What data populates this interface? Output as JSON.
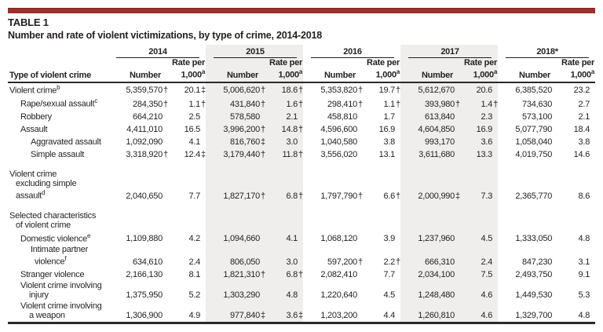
{
  "header": {
    "tag": "TABLE 1",
    "title": "Number and rate of violent victimizations, by type of crime, 2014-2018"
  },
  "columns": {
    "row_header": "Type of violent crime",
    "number_label": "Number",
    "rate_label_line1": "Rate per",
    "rate_label_line2": "1,000",
    "rate_sup": "a",
    "years": [
      {
        "label": "2014",
        "shaded": false
      },
      {
        "label": "2015",
        "shaded": true
      },
      {
        "label": "2016",
        "shaded": false
      },
      {
        "label": "2017",
        "shaded": true
      },
      {
        "label": "2018*",
        "shaded": false
      }
    ]
  },
  "rows": [
    {
      "name": "violent-crime",
      "bold": true,
      "indent": 0,
      "spacer_before": false,
      "section": false,
      "lines": [
        {
          "text": "Violent crime",
          "sup": "b"
        }
      ],
      "cells": [
        [
          "5,359,570",
          "†"
        ],
        [
          "20.1",
          "‡"
        ],
        [
          "5,006,620",
          "†"
        ],
        [
          "18.6",
          "†"
        ],
        [
          "5,353,820",
          "†"
        ],
        [
          "19.7",
          "†"
        ],
        [
          "5,612,670",
          ""
        ],
        [
          "20.6",
          ""
        ],
        [
          "6,385,520",
          ""
        ],
        [
          "23.2",
          ""
        ]
      ]
    },
    {
      "name": "rape-sexual-assault",
      "bold": false,
      "indent": 1,
      "spacer_before": false,
      "section": false,
      "lines": [
        {
          "text": "Rape/sexual assault",
          "sup": "c"
        }
      ],
      "cells": [
        [
          "284,350",
          "†"
        ],
        [
          "1.1",
          "†"
        ],
        [
          "431,840",
          "†"
        ],
        [
          "1.6",
          "†"
        ],
        [
          "298,410",
          "†"
        ],
        [
          "1.1",
          "†"
        ],
        [
          "393,980",
          "†"
        ],
        [
          "1.4",
          "†"
        ],
        [
          "734,630",
          ""
        ],
        [
          "2.7",
          ""
        ]
      ]
    },
    {
      "name": "robbery",
      "bold": false,
      "indent": 1,
      "spacer_before": false,
      "section": false,
      "lines": [
        {
          "text": "Robbery",
          "sup": ""
        }
      ],
      "cells": [
        [
          "664,210",
          ""
        ],
        [
          "2.5",
          ""
        ],
        [
          "578,580",
          ""
        ],
        [
          "2.1",
          ""
        ],
        [
          "458,810",
          ""
        ],
        [
          "1.7",
          ""
        ],
        [
          "613,840",
          ""
        ],
        [
          "2.3",
          ""
        ],
        [
          "573,100",
          ""
        ],
        [
          "2.1",
          ""
        ]
      ]
    },
    {
      "name": "assault",
      "bold": false,
      "indent": 1,
      "spacer_before": false,
      "section": false,
      "lines": [
        {
          "text": "Assault",
          "sup": ""
        }
      ],
      "cells": [
        [
          "4,411,010",
          ""
        ],
        [
          "16.5",
          ""
        ],
        [
          "3,996,200",
          "†"
        ],
        [
          "14.8",
          "†"
        ],
        [
          "4,596,600",
          ""
        ],
        [
          "16.9",
          ""
        ],
        [
          "4,604,850",
          ""
        ],
        [
          "16.9",
          ""
        ],
        [
          "5,077,790",
          ""
        ],
        [
          "18.4",
          ""
        ]
      ]
    },
    {
      "name": "aggravated-assault",
      "bold": false,
      "indent": 2,
      "spacer_before": false,
      "section": false,
      "lines": [
        {
          "text": "Aggravated assault",
          "sup": ""
        }
      ],
      "cells": [
        [
          "1,092,090",
          ""
        ],
        [
          "4.1",
          ""
        ],
        [
          "816,760",
          "‡"
        ],
        [
          "3.0",
          ""
        ],
        [
          "1,040,580",
          ""
        ],
        [
          "3.8",
          ""
        ],
        [
          "993,170",
          ""
        ],
        [
          "3.6",
          ""
        ],
        [
          "1,058,040",
          ""
        ],
        [
          "3.8",
          ""
        ]
      ]
    },
    {
      "name": "simple-assault",
      "bold": false,
      "indent": 2,
      "spacer_before": false,
      "section": false,
      "lines": [
        {
          "text": "Simple assault",
          "sup": ""
        }
      ],
      "cells": [
        [
          "3,318,920",
          "†"
        ],
        [
          "12.4",
          "‡"
        ],
        [
          "3,179,440",
          "†"
        ],
        [
          "11.8",
          "†"
        ],
        [
          "3,556,020",
          ""
        ],
        [
          "13.1",
          ""
        ],
        [
          "3,611,680",
          ""
        ],
        [
          "13.3",
          ""
        ],
        [
          "4,019,750",
          ""
        ],
        [
          "14.6",
          ""
        ]
      ]
    },
    {
      "name": "violent-crime-excluding-simple-assault",
      "bold": true,
      "indent": 0,
      "spacer_before": true,
      "section": false,
      "lines": [
        {
          "text": "Violent crime",
          "sup": ""
        },
        {
          "text": "excluding simple",
          "sup": ""
        },
        {
          "text": "assault",
          "sup": "d"
        }
      ],
      "cells": [
        [
          "2,040,650",
          ""
        ],
        [
          "7.7",
          ""
        ],
        [
          "1,827,170",
          "†"
        ],
        [
          "6.8",
          "†"
        ],
        [
          "1,797,790",
          "†"
        ],
        [
          "6.6",
          "†"
        ],
        [
          "2,000,990",
          "‡"
        ],
        [
          "7.3",
          ""
        ],
        [
          "2,365,770",
          ""
        ],
        [
          "8.6",
          ""
        ]
      ]
    },
    {
      "name": "selected-characteristics-of-violent-crime",
      "bold": true,
      "indent": 0,
      "spacer_before": true,
      "section": true,
      "lines": [
        {
          "text": "Selected characteristics",
          "sup": ""
        },
        {
          "text": "of violent crime",
          "sup": ""
        }
      ],
      "cells": [
        [
          "",
          ""
        ],
        [
          "",
          ""
        ],
        [
          "",
          ""
        ],
        [
          "",
          ""
        ],
        [
          "",
          ""
        ],
        [
          "",
          ""
        ],
        [
          "",
          ""
        ],
        [
          "",
          ""
        ],
        [
          "",
          ""
        ],
        [
          "",
          ""
        ]
      ]
    },
    {
      "name": "domestic-violence",
      "bold": false,
      "indent": 1,
      "spacer_before": false,
      "section": false,
      "lines": [
        {
          "text": "Domestic violence",
          "sup": "e"
        }
      ],
      "cells": [
        [
          "1,109,880",
          ""
        ],
        [
          "4.2",
          ""
        ],
        [
          "1,094,660",
          ""
        ],
        [
          "4.1",
          ""
        ],
        [
          "1,068,120",
          ""
        ],
        [
          "3.9",
          ""
        ],
        [
          "1,237,960",
          ""
        ],
        [
          "4.5",
          ""
        ],
        [
          "1,333,050",
          ""
        ],
        [
          "4.8",
          ""
        ]
      ]
    },
    {
      "name": "intimate-partner-violence",
      "bold": false,
      "indent": 2,
      "spacer_before": false,
      "section": false,
      "lines": [
        {
          "text": "Intimate partner",
          "sup": ""
        },
        {
          "text": "violence",
          "sup": "f"
        }
      ],
      "cells": [
        [
          "634,610",
          ""
        ],
        [
          "2.4",
          ""
        ],
        [
          "806,050",
          ""
        ],
        [
          "3.0",
          ""
        ],
        [
          "597,200",
          "†"
        ],
        [
          "2.2",
          "†"
        ],
        [
          "666,310",
          ""
        ],
        [
          "2.4",
          ""
        ],
        [
          "847,230",
          ""
        ],
        [
          "3.1",
          ""
        ]
      ]
    },
    {
      "name": "stranger-violence",
      "bold": false,
      "indent": 1,
      "spacer_before": false,
      "section": false,
      "lines": [
        {
          "text": "Stranger violence",
          "sup": ""
        }
      ],
      "cells": [
        [
          "2,166,130",
          ""
        ],
        [
          "8.1",
          ""
        ],
        [
          "1,821,310",
          "†"
        ],
        [
          "6.8",
          "†"
        ],
        [
          "2,082,410",
          ""
        ],
        [
          "7.7",
          ""
        ],
        [
          "2,034,100",
          ""
        ],
        [
          "7.5",
          ""
        ],
        [
          "2,493,750",
          ""
        ],
        [
          "9.1",
          ""
        ]
      ]
    },
    {
      "name": "violent-crime-involving-injury",
      "bold": false,
      "indent": 1,
      "spacer_before": false,
      "section": false,
      "lines": [
        {
          "text": "Violent crime involving",
          "sup": ""
        },
        {
          "text": "injury",
          "sup": ""
        }
      ],
      "cells": [
        [
          "1,375,950",
          ""
        ],
        [
          "5.2",
          ""
        ],
        [
          "1,303,290",
          ""
        ],
        [
          "4.8",
          ""
        ],
        [
          "1,220,640",
          ""
        ],
        [
          "4.5",
          ""
        ],
        [
          "1,248,480",
          ""
        ],
        [
          "4.6",
          ""
        ],
        [
          "1,449,530",
          ""
        ],
        [
          "5.3",
          ""
        ]
      ]
    },
    {
      "name": "violent-crime-involving-a-weapon",
      "bold": false,
      "indent": 1,
      "spacer_before": false,
      "section": false,
      "lines": [
        {
          "text": "Violent crime involving",
          "sup": ""
        },
        {
          "text": "a weapon",
          "sup": ""
        }
      ],
      "cells": [
        [
          "1,306,900",
          ""
        ],
        [
          "4.9",
          ""
        ],
        [
          "977,840",
          "‡"
        ],
        [
          "3.6",
          "‡"
        ],
        [
          "1,203,200",
          ""
        ],
        [
          "4.4",
          ""
        ],
        [
          "1,260,810",
          ""
        ],
        [
          "4.6",
          ""
        ],
        [
          "1,329,700",
          ""
        ],
        [
          "4.8",
          ""
        ]
      ]
    }
  ],
  "colors": {
    "accent_bar": "#99312c",
    "column_shade": "#efeeec",
    "text": "#231f20"
  }
}
